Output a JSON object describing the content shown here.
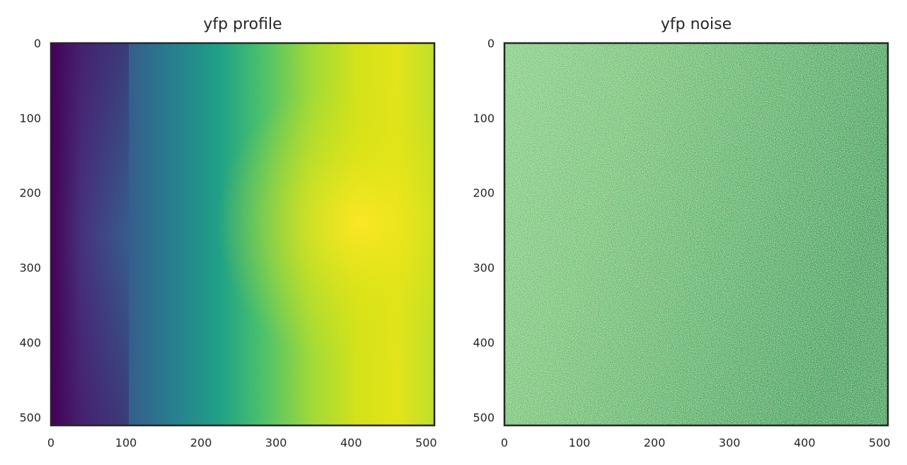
{
  "chart_data": [
    {
      "type": "heatmap",
      "title": "yfp profile",
      "colormap": "viridis",
      "xlim": [
        0,
        511
      ],
      "ylim": [
        511,
        0
      ],
      "xticks": [
        0,
        100,
        200,
        300,
        400,
        500
      ],
      "yticks": [
        0,
        100,
        200,
        300,
        400,
        500
      ],
      "xtick_labels": [
        "0",
        "100",
        "200",
        "300",
        "400",
        "500"
      ],
      "ytick_labels": [
        "0",
        "100",
        "200",
        "300",
        "400",
        "500"
      ],
      "xlabel": "",
      "ylabel": "",
      "grid": false,
      "value_range": [
        0.0,
        1.0
      ],
      "peak": {
        "x": 440,
        "y": 240
      },
      "description_of_values": "low at left edge (dark purple), increasing to a maximum near x≈440, y≈240 (yellow)"
    },
    {
      "type": "heatmap",
      "title": "yfp noise",
      "colormap": "Greens",
      "xlim": [
        0,
        511
      ],
      "ylim": [
        511,
        0
      ],
      "xticks": [
        0,
        100,
        200,
        300,
        400,
        500
      ],
      "yticks": [
        0,
        100,
        200,
        300,
        400,
        500
      ],
      "xtick_labels": [
        "0",
        "100",
        "200",
        "300",
        "400",
        "500"
      ],
      "ytick_labels": [
        "0",
        "100",
        "200",
        "300",
        "400",
        "500"
      ],
      "xlabel": "",
      "ylabel": "",
      "grid": false,
      "value_range": [
        0.0,
        1.0
      ]
    }
  ],
  "colors": {
    "frame": "#262626",
    "text": "#262626",
    "background": "#ffffff"
  }
}
